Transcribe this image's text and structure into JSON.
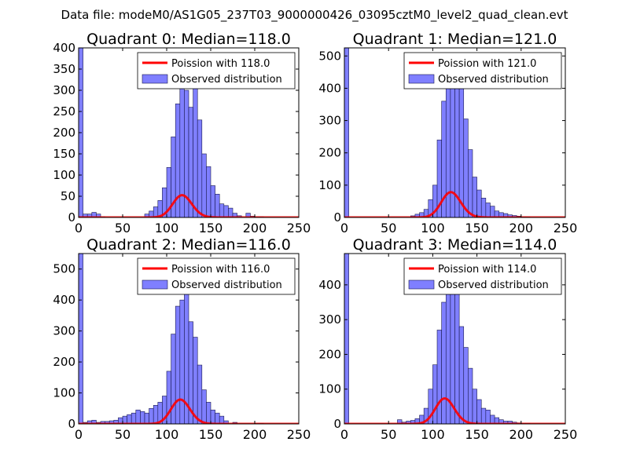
{
  "suptitle": "Data file: modeM0/AS1G05_237T03_9000000426_03095cztM0_level2_quad_clean.evt",
  "colors": {
    "bar_fill": "#7f7fff",
    "bar_edge": "#1a1a4d",
    "poisson_line": "#ff0000",
    "axis": "#000000",
    "background": "#ffffff"
  },
  "chart_data": [
    {
      "type": "bar",
      "title": "Quadrant 0: Median=118.0",
      "median": 118.0,
      "xlim": [
        0,
        250
      ],
      "ylim": [
        0,
        400
      ],
      "xticks": [
        0,
        50,
        100,
        150,
        200,
        250
      ],
      "yticks": [
        0,
        50,
        100,
        150,
        200,
        250,
        300,
        350,
        400
      ],
      "legend": {
        "location": "top-right",
        "entries": [
          "Poission with 118.0",
          "Observed distribution"
        ]
      },
      "bin_width": 5,
      "bins": [
        [
          0,
          400
        ],
        [
          5,
          8
        ],
        [
          10,
          8
        ],
        [
          15,
          12
        ],
        [
          20,
          8
        ],
        [
          25,
          2
        ],
        [
          75,
          8
        ],
        [
          80,
          15
        ],
        [
          85,
          25
        ],
        [
          90,
          40
        ],
        [
          95,
          70
        ],
        [
          100,
          118
        ],
        [
          105,
          190
        ],
        [
          110,
          268
        ],
        [
          115,
          310
        ],
        [
          120,
          300
        ],
        [
          125,
          260
        ],
        [
          130,
          348
        ],
        [
          135,
          230
        ],
        [
          140,
          150
        ],
        [
          145,
          120
        ],
        [
          150,
          75
        ],
        [
          155,
          55
        ],
        [
          160,
          32
        ],
        [
          165,
          28
        ],
        [
          170,
          22
        ],
        [
          175,
          10
        ],
        [
          180,
          4
        ],
        [
          190,
          10
        ],
        [
          195,
          3
        ],
        [
          200,
          2
        ],
        [
          205,
          2
        ]
      ],
      "poisson": {
        "mean": 118.0,
        "scale": 1430
      }
    },
    {
      "type": "bar",
      "title": "Quadrant 1: Median=121.0",
      "median": 121.0,
      "xlim": [
        0,
        250
      ],
      "ylim": [
        0,
        525
      ],
      "xticks": [
        0,
        50,
        100,
        150,
        200,
        250
      ],
      "yticks": [
        0,
        100,
        200,
        300,
        400,
        500
      ],
      "legend": {
        "location": "top-right",
        "entries": [
          "Poission with 121.0",
          "Observed distribution"
        ]
      },
      "bin_width": 5,
      "bins": [
        [
          0,
          525
        ],
        [
          75,
          5
        ],
        [
          80,
          10
        ],
        [
          85,
          15
        ],
        [
          90,
          25
        ],
        [
          95,
          55
        ],
        [
          100,
          100
        ],
        [
          105,
          240
        ],
        [
          110,
          360
        ],
        [
          115,
          400
        ],
        [
          120,
          465
        ],
        [
          125,
          440
        ],
        [
          130,
          405
        ],
        [
          135,
          305
        ],
        [
          140,
          210
        ],
        [
          145,
          125
        ],
        [
          150,
          85
        ],
        [
          155,
          60
        ],
        [
          160,
          45
        ],
        [
          165,
          35
        ],
        [
          170,
          20
        ],
        [
          175,
          15
        ],
        [
          180,
          12
        ],
        [
          185,
          8
        ],
        [
          190,
          6
        ],
        [
          195,
          4
        ],
        [
          200,
          2
        ],
        [
          205,
          2
        ]
      ],
      "poisson": {
        "mean": 121.0,
        "scale": 2160
      }
    },
    {
      "type": "bar",
      "title": "Quadrant 2: Median=116.0",
      "median": 116.0,
      "xlim": [
        0,
        250
      ],
      "ylim": [
        0,
        550
      ],
      "xticks": [
        0,
        50,
        100,
        150,
        200,
        250
      ],
      "yticks": [
        0,
        100,
        200,
        300,
        400,
        500
      ],
      "legend": {
        "location": "top-right",
        "entries": [
          "Poission with 116.0",
          "Observed distribution"
        ]
      },
      "bin_width": 5,
      "bins": [
        [
          0,
          550
        ],
        [
          5,
          5
        ],
        [
          10,
          10
        ],
        [
          15,
          12
        ],
        [
          20,
          5
        ],
        [
          25,
          8
        ],
        [
          30,
          8
        ],
        [
          35,
          10
        ],
        [
          40,
          12
        ],
        [
          45,
          20
        ],
        [
          50,
          25
        ],
        [
          55,
          30
        ],
        [
          60,
          35
        ],
        [
          65,
          45
        ],
        [
          70,
          40
        ],
        [
          75,
          35
        ],
        [
          80,
          50
        ],
        [
          85,
          60
        ],
        [
          90,
          70
        ],
        [
          95,
          90
        ],
        [
          100,
          170
        ],
        [
          105,
          290
        ],
        [
          110,
          380
        ],
        [
          115,
          400
        ],
        [
          120,
          430
        ],
        [
          125,
          330
        ],
        [
          130,
          280
        ],
        [
          135,
          190
        ],
        [
          140,
          110
        ],
        [
          145,
          70
        ],
        [
          150,
          45
        ],
        [
          155,
          35
        ],
        [
          160,
          25
        ],
        [
          165,
          10
        ],
        [
          175,
          5
        ],
        [
          200,
          2
        ],
        [
          205,
          2
        ]
      ],
      "poisson": {
        "mean": 116.0,
        "scale": 2120
      }
    },
    {
      "type": "bar",
      "title": "Quadrant 3: Median=114.0",
      "median": 114.0,
      "xlim": [
        0,
        250
      ],
      "ylim": [
        0,
        490
      ],
      "xticks": [
        0,
        50,
        100,
        150,
        200,
        250
      ],
      "yticks": [
        0,
        100,
        200,
        300,
        400
      ],
      "legend": {
        "location": "top-right",
        "entries": [
          "Poission with 114.0",
          "Observed distribution"
        ]
      },
      "bin_width": 5,
      "bins": [
        [
          0,
          490
        ],
        [
          60,
          12
        ],
        [
          65,
          5
        ],
        [
          70,
          8
        ],
        [
          75,
          10
        ],
        [
          80,
          15
        ],
        [
          85,
          25
        ],
        [
          90,
          45
        ],
        [
          95,
          100
        ],
        [
          100,
          170
        ],
        [
          105,
          270
        ],
        [
          110,
          350
        ],
        [
          115,
          410
        ],
        [
          120,
          450
        ],
        [
          125,
          380
        ],
        [
          130,
          280
        ],
        [
          135,
          220
        ],
        [
          140,
          160
        ],
        [
          145,
          100
        ],
        [
          150,
          70
        ],
        [
          155,
          45
        ],
        [
          160,
          40
        ],
        [
          165,
          25
        ],
        [
          170,
          18
        ],
        [
          175,
          12
        ],
        [
          180,
          8
        ],
        [
          185,
          8
        ],
        [
          190,
          5
        ],
        [
          195,
          3
        ],
        [
          200,
          2
        ],
        [
          205,
          2
        ]
      ],
      "poisson": {
        "mean": 114.0,
        "scale": 1960
      }
    }
  ]
}
